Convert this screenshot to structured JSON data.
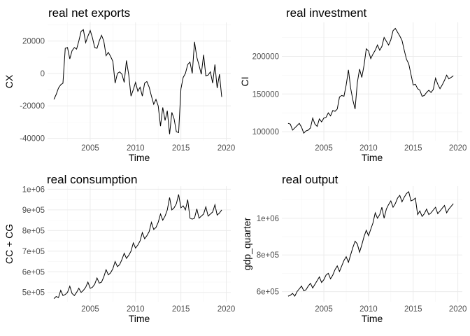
{
  "chart_data": [
    {
      "type": "line",
      "title": "real net exports",
      "xlabel": "Time",
      "ylabel": "CX",
      "xlim": [
        2000.3,
        2020.5
      ],
      "ylim": [
        -41500,
        31500
      ],
      "xticks": [
        2005,
        2010,
        2015,
        2020
      ],
      "xtick_labels": [
        "2005",
        "2010",
        "2015",
        "2020"
      ],
      "yticks": [
        -40000,
        -20000,
        0,
        20000
      ],
      "ytick_labels": [
        "-40000",
        "-20000",
        "0",
        "20000"
      ],
      "grid": true,
      "x": [
        2001.0,
        2001.25,
        2001.5,
        2001.75,
        2002.0,
        2002.25,
        2002.5,
        2002.75,
        2003.0,
        2003.25,
        2003.5,
        2003.75,
        2004.0,
        2004.25,
        2004.5,
        2004.75,
        2005.0,
        2005.25,
        2005.5,
        2005.75,
        2006.0,
        2006.25,
        2006.5,
        2006.75,
        2007.0,
        2007.25,
        2007.5,
        2007.75,
        2008.0,
        2008.25,
        2008.5,
        2008.75,
        2009.0,
        2009.25,
        2009.5,
        2009.75,
        2010.0,
        2010.25,
        2010.5,
        2010.75,
        2011.0,
        2011.25,
        2011.5,
        2011.75,
        2012.0,
        2012.25,
        2012.5,
        2012.75,
        2013.0,
        2013.25,
        2013.5,
        2013.75,
        2014.0,
        2014.25,
        2014.5,
        2014.75,
        2015.0,
        2015.25,
        2015.5,
        2015.75,
        2016.0,
        2016.25,
        2016.5,
        2016.75,
        2017.0,
        2017.25,
        2017.5,
        2017.75,
        2018.0,
        2018.25,
        2018.5,
        2018.75,
        2019.0,
        2019.25,
        2019.5
      ],
      "values": [
        -16000,
        -13000,
        -9000,
        -7000,
        -6000,
        15500,
        16000,
        9000,
        14000,
        16000,
        15000,
        20000,
        26000,
        27000,
        19000,
        23000,
        26500,
        22000,
        16000,
        15500,
        20000,
        23500,
        20000,
        11000,
        13000,
        10500,
        7500,
        -6000,
        0,
        1000,
        -500,
        -5500,
        8000,
        -1000,
        -14000,
        -10000,
        -5500,
        -11000,
        -8500,
        -14000,
        -6000,
        -5000,
        -8500,
        -14000,
        -19000,
        -16000,
        -20000,
        -32500,
        -21000,
        -29000,
        -23000,
        -37500,
        -24000,
        -28000,
        -36000,
        -36500,
        -9500,
        -2500,
        0,
        5500,
        7000,
        0,
        19500,
        10000,
        5000,
        -500,
        11500,
        -1500,
        -1000,
        1000,
        -6000,
        5500,
        -9000,
        -500,
        -14500
      ]
    },
    {
      "type": "line",
      "title": "real investment",
      "xlabel": "Time",
      "ylabel": "CI",
      "xlim": [
        2000.3,
        2020.5
      ],
      "ylim": [
        88000,
        245000
      ],
      "xticks": [
        2005,
        2010,
        2015,
        2020
      ],
      "xtick_labels": [
        "2005",
        "2010",
        "2015",
        "2020"
      ],
      "yticks": [
        100000,
        150000,
        200000
      ],
      "ytick_labels": [
        "100000",
        "150000",
        "200000"
      ],
      "grid": true,
      "x": [
        2001.0,
        2001.25,
        2001.5,
        2001.75,
        2002.0,
        2002.25,
        2002.5,
        2002.75,
        2003.0,
        2003.25,
        2003.5,
        2003.75,
        2004.0,
        2004.25,
        2004.5,
        2004.75,
        2005.0,
        2005.25,
        2005.5,
        2005.75,
        2006.0,
        2006.25,
        2006.5,
        2006.75,
        2007.0,
        2007.25,
        2007.5,
        2007.75,
        2008.0,
        2008.25,
        2008.5,
        2008.75,
        2009.0,
        2009.25,
        2009.5,
        2009.75,
        2010.0,
        2010.25,
        2010.5,
        2010.75,
        2011.0,
        2011.25,
        2011.5,
        2011.75,
        2012.0,
        2012.25,
        2012.5,
        2012.75,
        2013.0,
        2013.25,
        2013.5,
        2013.75,
        2014.0,
        2014.25,
        2014.5,
        2014.75,
        2015.0,
        2015.25,
        2015.5,
        2015.75,
        2016.0,
        2016.25,
        2016.5,
        2016.75,
        2017.0,
        2017.25,
        2017.5,
        2017.75,
        2018.0,
        2018.25,
        2018.5,
        2018.75,
        2019.0,
        2019.25,
        2019.5
      ],
      "values": [
        111000,
        110000,
        102000,
        105000,
        108000,
        111000,
        106000,
        98000,
        101000,
        102000,
        105000,
        118000,
        110000,
        107000,
        117000,
        113000,
        118000,
        119000,
        125000,
        121000,
        128000,
        127000,
        130000,
        146000,
        148000,
        147000,
        162000,
        182000,
        158000,
        142000,
        130000,
        165000,
        183000,
        172000,
        188000,
        210000,
        207000,
        197000,
        203000,
        208000,
        215000,
        208000,
        213000,
        225000,
        220000,
        215000,
        222000,
        234000,
        237000,
        232000,
        227000,
        221000,
        208000,
        196000,
        190000,
        176000,
        162000,
        163000,
        157000,
        155000,
        147000,
        148000,
        152000,
        155000,
        152000,
        156000,
        171000,
        163000,
        157000,
        162000,
        168000,
        175000,
        170000,
        172000,
        174000
      ]
    },
    {
      "type": "line",
      "title": "real consumption",
      "xlabel": "Time",
      "ylabel": "CC + CG",
      "xlim": [
        2000.3,
        2020.5
      ],
      "ylim": [
        455000,
        1015000
      ],
      "xticks": [
        2005,
        2010,
        2015,
        2020
      ],
      "xtick_labels": [
        "2005",
        "2010",
        "2015",
        "2020"
      ],
      "yticks": [
        500000,
        600000,
        700000,
        800000,
        900000,
        1000000
      ],
      "ytick_labels": [
        "5e+05",
        "6e+05",
        "7e+05",
        "8e+05",
        "9e+05",
        "1e+06"
      ],
      "grid": true,
      "x": [
        2001.0,
        2001.25,
        2001.5,
        2001.75,
        2002.0,
        2002.25,
        2002.5,
        2002.75,
        2003.0,
        2003.25,
        2003.5,
        2003.75,
        2004.0,
        2004.25,
        2004.5,
        2004.75,
        2005.0,
        2005.25,
        2005.5,
        2005.75,
        2006.0,
        2006.25,
        2006.5,
        2006.75,
        2007.0,
        2007.25,
        2007.5,
        2007.75,
        2008.0,
        2008.25,
        2008.5,
        2008.75,
        2009.0,
        2009.25,
        2009.5,
        2009.75,
        2010.0,
        2010.25,
        2010.5,
        2010.75,
        2011.0,
        2011.25,
        2011.5,
        2011.75,
        2012.0,
        2012.25,
        2012.5,
        2012.75,
        2013.0,
        2013.25,
        2013.5,
        2013.75,
        2014.0,
        2014.25,
        2014.5,
        2014.75,
        2015.0,
        2015.25,
        2015.5,
        2015.75,
        2016.0,
        2016.25,
        2016.5,
        2016.75,
        2017.0,
        2017.25,
        2017.5,
        2017.75,
        2018.0,
        2018.25,
        2018.5,
        2018.75,
        2019.0,
        2019.25,
        2019.5
      ],
      "values": [
        470000,
        480000,
        475000,
        510000,
        485000,
        490000,
        500000,
        530000,
        495000,
        485000,
        500000,
        520000,
        500000,
        510000,
        525000,
        550000,
        520000,
        525000,
        540000,
        570000,
        545000,
        550000,
        575000,
        610000,
        585000,
        595000,
        615000,
        650000,
        625000,
        635000,
        660000,
        690000,
        665000,
        680000,
        700000,
        740000,
        715000,
        730000,
        750000,
        790000,
        760000,
        775000,
        795000,
        840000,
        805000,
        815000,
        840000,
        880000,
        850000,
        870000,
        900000,
        960000,
        900000,
        910000,
        930000,
        975000,
        910000,
        920000,
        900000,
        950000,
        860000,
        855000,
        860000,
        905000,
        860000,
        870000,
        880000,
        915000,
        870000,
        880000,
        890000,
        925000,
        875000,
        885000,
        900000
      ]
    },
    {
      "type": "line",
      "title": "real output",
      "xlabel": "Time",
      "ylabel": "gdp_quarter",
      "xlim": [
        2000.3,
        2020.5
      ],
      "ylim": [
        545000,
        1175000
      ],
      "xticks": [
        2005,
        2010,
        2015,
        2020
      ],
      "xtick_labels": [
        "2005",
        "2010",
        "2015",
        "2020"
      ],
      "yticks": [
        600000,
        800000,
        1000000
      ],
      "ytick_labels": [
        "6e+05",
        "8e+05",
        "1e+06"
      ],
      "grid": true,
      "x": [
        2001.0,
        2001.25,
        2001.5,
        2001.75,
        2002.0,
        2002.25,
        2002.5,
        2002.75,
        2003.0,
        2003.25,
        2003.5,
        2003.75,
        2004.0,
        2004.25,
        2004.5,
        2004.75,
        2005.0,
        2005.25,
        2005.5,
        2005.75,
        2006.0,
        2006.25,
        2006.5,
        2006.75,
        2007.0,
        2007.25,
        2007.5,
        2007.75,
        2008.0,
        2008.25,
        2008.5,
        2008.75,
        2009.0,
        2009.25,
        2009.5,
        2009.75,
        2010.0,
        2010.25,
        2010.5,
        2010.75,
        2011.0,
        2011.25,
        2011.5,
        2011.75,
        2012.0,
        2012.25,
        2012.5,
        2012.75,
        2013.0,
        2013.25,
        2013.5,
        2013.75,
        2014.0,
        2014.25,
        2014.5,
        2014.75,
        2015.0,
        2015.25,
        2015.5,
        2015.75,
        2016.0,
        2016.25,
        2016.5,
        2016.75,
        2017.0,
        2017.25,
        2017.5,
        2017.75,
        2018.0,
        2018.25,
        2018.5,
        2018.75,
        2019.0,
        2019.25,
        2019.5
      ],
      "values": [
        575000,
        580000,
        590000,
        575000,
        600000,
        615000,
        630000,
        605000,
        610000,
        630000,
        645000,
        620000,
        640000,
        660000,
        680000,
        650000,
        665000,
        690000,
        700000,
        670000,
        690000,
        720000,
        740000,
        710000,
        740000,
        770000,
        790000,
        760000,
        800000,
        840000,
        875000,
        860000,
        815000,
        855000,
        900000,
        935000,
        905000,
        940000,
        975000,
        1030000,
        1000000,
        1020000,
        1060000,
        1000000,
        1050000,
        1075000,
        1095000,
        1060000,
        1080000,
        1110000,
        1125000,
        1090000,
        1115000,
        1135000,
        1145000,
        1095000,
        1100000,
        1110000,
        1020000,
        1040000,
        1010000,
        1025000,
        1050000,
        1020000,
        1030000,
        1045000,
        1060000,
        1025000,
        1040000,
        1055000,
        1070000,
        1030000,
        1050000,
        1065000,
        1080000
      ]
    }
  ]
}
